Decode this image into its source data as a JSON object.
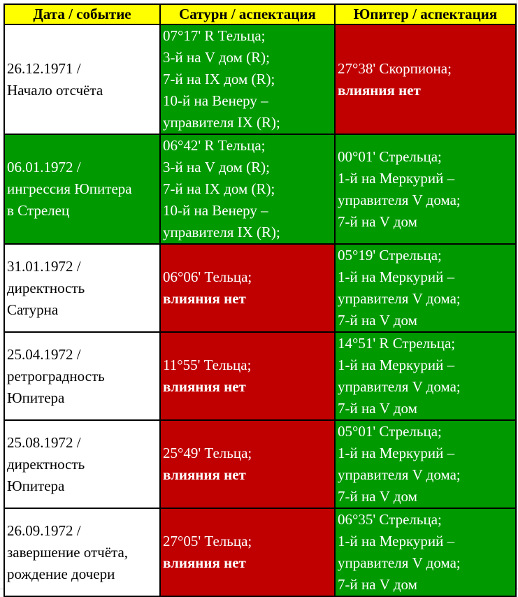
{
  "colors": {
    "header": "#ffff00",
    "positive": "#009900",
    "negative": "#c00000"
  },
  "headers": [
    "Дата / событие",
    "Сатурн / аспектация",
    "Юпитер / аспектация"
  ],
  "rows": [
    {
      "date": {
        "bg": "w",
        "lines": [
          "26.12.1971 /",
          "Начало отсчёта"
        ]
      },
      "saturn": {
        "bg": "g",
        "lines": [
          "07°17' R Тельца;",
          "3-й на V дом (R);",
          "7-й на IX дом (R);",
          "10-й на Венеру –",
          "управителя IX (R);"
        ]
      },
      "jupiter": {
        "bg": "r",
        "lines": [
          "27°38' Скорпиона;"
        ],
        "bold": "влияния нет"
      }
    },
    {
      "date": {
        "bg": "g",
        "lines": [
          "06.01.1972 /",
          "ингрессия Юпитера",
          "в Стрелец"
        ]
      },
      "saturn": {
        "bg": "g",
        "lines": [
          "06°42' R Тельца;",
          "3-й на V дом (R);",
          "7-й на IX дом (R);",
          "10-й на Венеру –",
          "управителя IX (R);"
        ]
      },
      "jupiter": {
        "bg": "g",
        "lines": [
          "00°01' Стрельца;",
          "1-й на Меркурий –",
          "управителя V дома;",
          "7-й на V дом"
        ]
      }
    },
    {
      "date": {
        "bg": "w",
        "lines": [
          "31.01.1972 /",
          "директность",
          "Сатурна"
        ]
      },
      "saturn": {
        "bg": "r",
        "lines": [
          "06°06' Тельца;"
        ],
        "bold": "влияния нет"
      },
      "jupiter": {
        "bg": "g",
        "lines": [
          "05°19' Стрельца;",
          "1-й на Меркурий –",
          "управителя V дома;",
          "7-й на V дом"
        ]
      }
    },
    {
      "date": {
        "bg": "w",
        "lines": [
          "25.04.1972 /",
          "ретроградность",
          "Юпитера"
        ]
      },
      "saturn": {
        "bg": "r",
        "lines": [
          "11°55' Тельца;"
        ],
        "bold": "влияния нет"
      },
      "jupiter": {
        "bg": "g",
        "lines": [
          "14°51' R Стрельца;",
          "1-й на Меркурий –",
          "управителя V дома;",
          "7-й на V дом"
        ]
      }
    },
    {
      "date": {
        "bg": "w",
        "lines": [
          "25.08.1972 /",
          "директность",
          "Юпитера"
        ]
      },
      "saturn": {
        "bg": "r",
        "lines": [
          "25°49' Тельца;"
        ],
        "bold": "влияния нет"
      },
      "jupiter": {
        "bg": "g",
        "lines": [
          "05°01' Стрельца;",
          "1-й на Меркурий –",
          "управителя V дома;",
          "7-й на V дом"
        ]
      }
    },
    {
      "date": {
        "bg": "w",
        "lines": [
          "26.09.1972 /",
          "завершение отчёта,",
          "рождение дочери"
        ]
      },
      "saturn": {
        "bg": "r",
        "lines": [
          "27°05' Тельца;"
        ],
        "bold": "влияния нет"
      },
      "jupiter": {
        "bg": "g",
        "lines": [
          "06°35' Стрельца;",
          "1-й на Меркурий –",
          "управителя V дома;",
          "7-й на V дом"
        ]
      }
    }
  ]
}
